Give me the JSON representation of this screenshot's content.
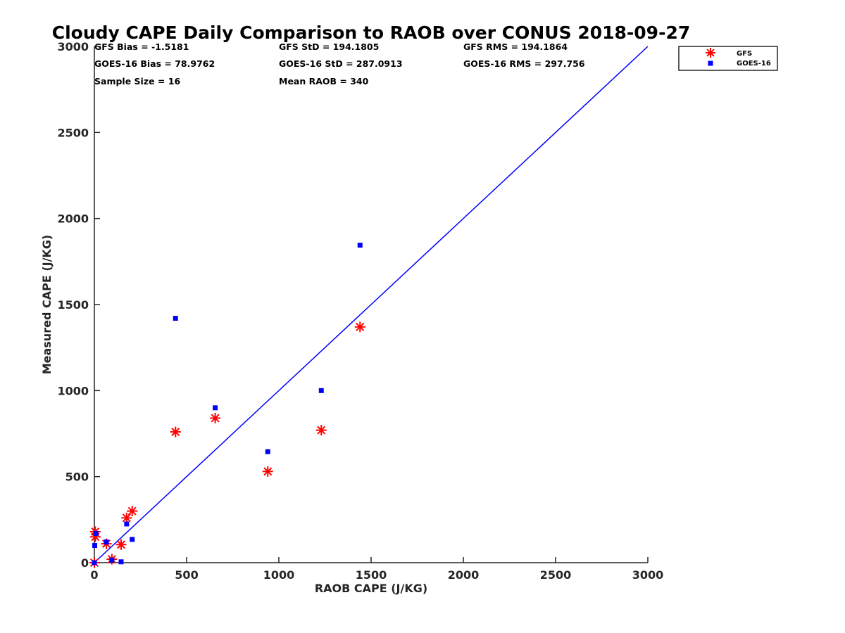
{
  "chart_data": {
    "type": "scatter",
    "title": "Cloudy CAPE Daily Comparison to RAOB over CONUS 2018-09-27",
    "xlabel": "RAOB CAPE (J/KG)",
    "ylabel": "Measured CAPE (J/KG)",
    "xlim": [
      0,
      3000
    ],
    "ylim": [
      0,
      3000
    ],
    "xticks": [
      "0",
      "500",
      "1000",
      "1500",
      "2000",
      "2500",
      "3000"
    ],
    "yticks": [
      "0",
      "500",
      "1000",
      "1500",
      "2000",
      "2500",
      "3000"
    ],
    "grid": false,
    "legend_position": "outside-top-right",
    "stats": [
      [
        "GFS Bias = -1.5181",
        "GFS StD = 194.1805",
        "GFS RMS = 194.1864"
      ],
      [
        "GOES-16 Bias = 78.9762",
        "GOES-16 StD = 287.0913",
        "GOES-16 RMS = 297.756"
      ],
      [
        "Sample Size = 16",
        "Mean RAOB = 340",
        ""
      ]
    ],
    "reference_line": {
      "x": [
        0,
        3000
      ],
      "y": [
        0,
        3000
      ],
      "color": "#0000ff"
    },
    "series": [
      {
        "name": "GFS",
        "marker": "asterisk",
        "color": "#ff0000",
        "points": [
          [
            0,
            0
          ],
          [
            5,
            180
          ],
          [
            5,
            150
          ],
          [
            65,
            110
          ],
          [
            95,
            20
          ],
          [
            145,
            105
          ],
          [
            175,
            260
          ],
          [
            205,
            300
          ],
          [
            440,
            760
          ],
          [
            655,
            840
          ],
          [
            940,
            530
          ],
          [
            1230,
            770
          ],
          [
            1440,
            1370
          ]
        ]
      },
      {
        "name": "GOES-16",
        "marker": "square",
        "color": "#0000ff",
        "points": [
          [
            0,
            0
          ],
          [
            2,
            100
          ],
          [
            8,
            170
          ],
          [
            65,
            120
          ],
          [
            95,
            15
          ],
          [
            145,
            5
          ],
          [
            175,
            225
          ],
          [
            205,
            135
          ],
          [
            440,
            1420
          ],
          [
            655,
            900
          ],
          [
            940,
            645
          ],
          [
            1230,
            1000
          ],
          [
            1440,
            1845
          ]
        ]
      }
    ]
  }
}
